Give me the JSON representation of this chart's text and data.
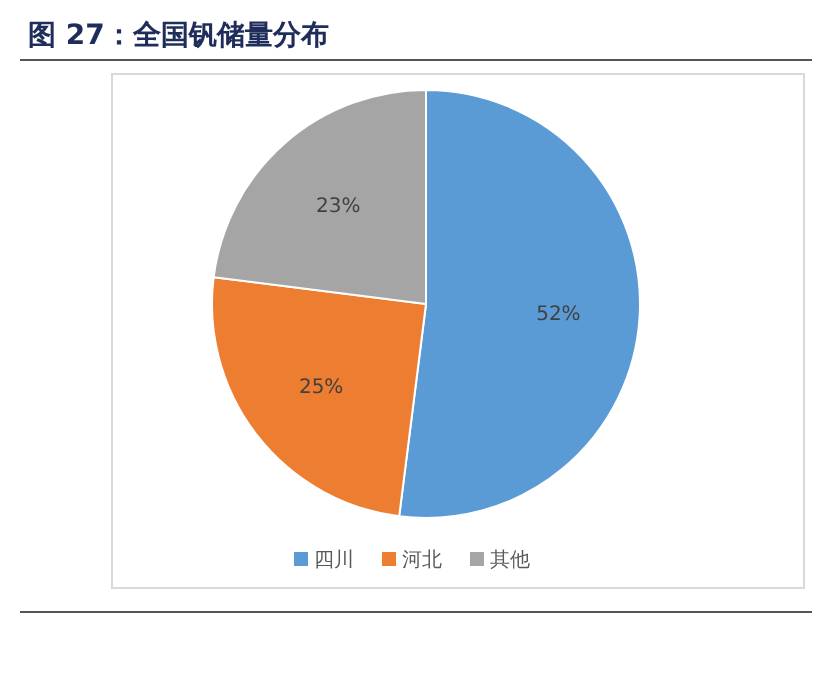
{
  "chart_data": {
    "type": "pie",
    "title": "图 27：全国钒储量分布",
    "categories": [
      "四川",
      "河北",
      "其他"
    ],
    "values": [
      52,
      25,
      23
    ],
    "colors": [
      "#5b9bd5",
      "#ed7d31",
      "#a5a5a5"
    ],
    "value_labels": [
      "52%",
      "25%",
      "23%"
    ],
    "legend": "bottom"
  }
}
